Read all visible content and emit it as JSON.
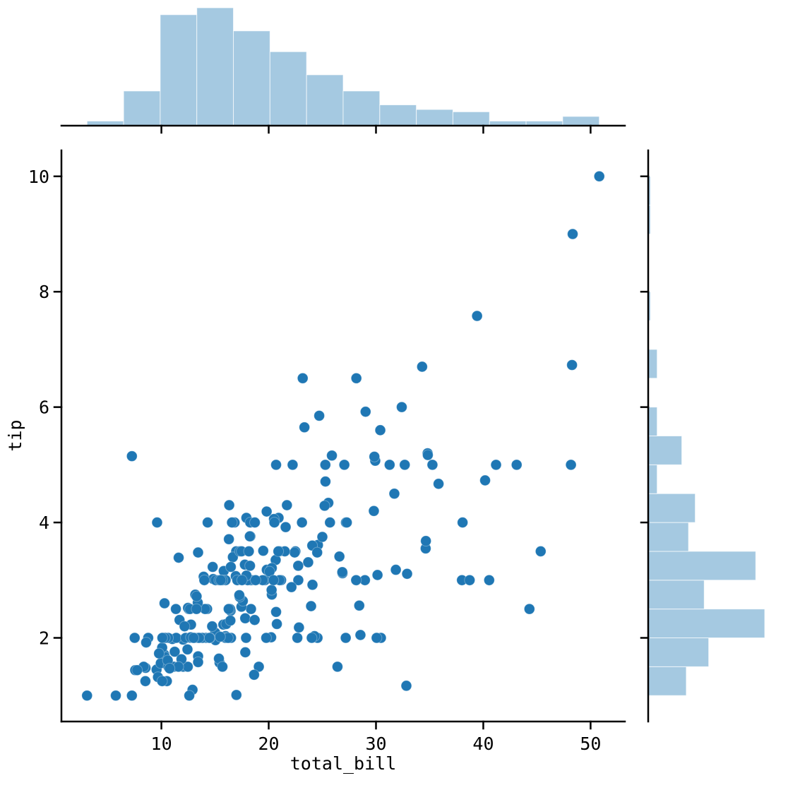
{
  "figure": {
    "xlabel": "total_bill",
    "ylabel": "tip",
    "x_tick_labels": [
      "10",
      "20",
      "30",
      "40",
      "50"
    ],
    "y_tick_labels": [
      "2",
      "4",
      "6",
      "8",
      "10"
    ]
  },
  "colors": {
    "point": "#1f77b4",
    "hist_fill": "#1f77b4",
    "hist_fill_alpha": 0.4,
    "axis": "#000000",
    "background": "#ffffff"
  },
  "chart_data": [
    {
      "id": "joint-scatter",
      "type": "scatter",
      "xlabel": "total_bill",
      "ylabel": "tip",
      "xlim": [
        0.683,
        53.197
      ],
      "ylim": [
        0.55,
        10.45
      ],
      "x_ticks": [
        10,
        20,
        30,
        40,
        50
      ],
      "y_ticks": [
        2,
        4,
        6,
        8,
        10
      ],
      "grid": false,
      "points": [
        [
          16.99,
          1.01
        ],
        [
          10.34,
          1.66
        ],
        [
          21.01,
          3.5
        ],
        [
          23.68,
          3.31
        ],
        [
          24.59,
          3.61
        ],
        [
          25.29,
          4.71
        ],
        [
          8.77,
          2.0
        ],
        [
          26.88,
          3.12
        ],
        [
          15.04,
          1.96
        ],
        [
          14.78,
          3.23
        ],
        [
          10.27,
          1.71
        ],
        [
          35.26,
          5.0
        ],
        [
          15.42,
          1.57
        ],
        [
          18.43,
          3.0
        ],
        [
          14.83,
          3.02
        ],
        [
          21.58,
          3.92
        ],
        [
          10.33,
          1.67
        ],
        [
          16.29,
          3.71
        ],
        [
          16.97,
          3.5
        ],
        [
          20.65,
          3.35
        ],
        [
          17.92,
          4.08
        ],
        [
          20.29,
          2.75
        ],
        [
          15.77,
          2.23
        ],
        [
          39.42,
          7.58
        ],
        [
          19.82,
          3.18
        ],
        [
          17.81,
          2.34
        ],
        [
          13.37,
          2.0
        ],
        [
          12.69,
          2.0
        ],
        [
          21.7,
          4.3
        ],
        [
          19.65,
          3.0
        ],
        [
          9.55,
          1.45
        ],
        [
          18.35,
          2.5
        ],
        [
          15.06,
          3.0
        ],
        [
          20.69,
          2.45
        ],
        [
          17.78,
          3.27
        ],
        [
          24.06,
          3.6
        ],
        [
          16.31,
          2.0
        ],
        [
          16.93,
          3.07
        ],
        [
          18.69,
          2.31
        ],
        [
          31.27,
          5.0
        ],
        [
          16.04,
          2.24
        ],
        [
          17.46,
          2.54
        ],
        [
          13.94,
          3.06
        ],
        [
          9.68,
          1.32
        ],
        [
          30.4,
          5.6
        ],
        [
          18.29,
          3.0
        ],
        [
          22.23,
          5.0
        ],
        [
          32.4,
          6.0
        ],
        [
          28.55,
          2.05
        ],
        [
          18.04,
          3.0
        ],
        [
          12.54,
          2.5
        ],
        [
          10.29,
          2.6
        ],
        [
          34.81,
          5.2
        ],
        [
          9.94,
          1.56
        ],
        [
          25.56,
          4.34
        ],
        [
          19.49,
          3.51
        ],
        [
          38.01,
          3.0
        ],
        [
          26.41,
          1.5
        ],
        [
          11.24,
          1.76
        ],
        [
          48.27,
          6.73
        ],
        [
          20.29,
          3.21
        ],
        [
          13.81,
          2.0
        ],
        [
          11.02,
          1.98
        ],
        [
          18.29,
          3.76
        ],
        [
          17.59,
          2.64
        ],
        [
          20.08,
          3.15
        ],
        [
          16.45,
          2.47
        ],
        [
          3.07,
          1.0
        ],
        [
          20.23,
          2.01
        ],
        [
          15.01,
          2.09
        ],
        [
          12.02,
          1.97
        ],
        [
          17.07,
          3.0
        ],
        [
          26.86,
          3.14
        ],
        [
          25.28,
          5.0
        ],
        [
          14.73,
          2.2
        ],
        [
          10.51,
          1.25
        ],
        [
          17.92,
          3.08
        ],
        [
          27.2,
          4.0
        ],
        [
          22.76,
          3.0
        ],
        [
          17.29,
          2.71
        ],
        [
          19.44,
          3.0
        ],
        [
          16.66,
          3.4
        ],
        [
          10.07,
          1.83
        ],
        [
          32.68,
          5.0
        ],
        [
          15.98,
          2.03
        ],
        [
          34.83,
          5.17
        ],
        [
          13.03,
          2.0
        ],
        [
          18.28,
          4.0
        ],
        [
          24.71,
          5.85
        ],
        [
          21.16,
          3.0
        ],
        [
          28.97,
          3.0
        ],
        [
          22.49,
          3.5
        ],
        [
          5.75,
          1.0
        ],
        [
          16.32,
          4.3
        ],
        [
          22.75,
          3.25
        ],
        [
          40.17,
          4.73
        ],
        [
          27.28,
          4.0
        ],
        [
          12.03,
          1.5
        ],
        [
          21.01,
          3.0
        ],
        [
          12.46,
          1.5
        ],
        [
          11.35,
          2.5
        ],
        [
          15.38,
          3.0
        ],
        [
          44.3,
          2.5
        ],
        [
          22.42,
          3.48
        ],
        [
          20.92,
          4.08
        ],
        [
          15.36,
          1.64
        ],
        [
          20.49,
          4.06
        ],
        [
          25.21,
          4.29
        ],
        [
          18.24,
          3.76
        ],
        [
          14.31,
          4.0
        ],
        [
          14.0,
          3.0
        ],
        [
          7.25,
          1.0
        ],
        [
          38.07,
          4.0
        ],
        [
          23.95,
          2.55
        ],
        [
          25.71,
          4.0
        ],
        [
          17.31,
          3.5
        ],
        [
          29.93,
          5.07
        ],
        [
          10.65,
          1.5
        ],
        [
          12.43,
          1.8
        ],
        [
          24.08,
          2.92
        ],
        [
          11.69,
          2.31
        ],
        [
          13.42,
          1.68
        ],
        [
          14.26,
          2.5
        ],
        [
          15.95,
          2.0
        ],
        [
          12.48,
          2.52
        ],
        [
          29.8,
          4.2
        ],
        [
          8.52,
          1.48
        ],
        [
          14.52,
          2.0
        ],
        [
          11.38,
          2.0
        ],
        [
          22.82,
          2.18
        ],
        [
          19.08,
          1.5
        ],
        [
          20.27,
          2.83
        ],
        [
          11.17,
          1.5
        ],
        [
          12.26,
          2.0
        ],
        [
          18.26,
          3.25
        ],
        [
          8.51,
          1.25
        ],
        [
          10.33,
          2.0
        ],
        [
          14.15,
          2.0
        ],
        [
          16.0,
          2.0
        ],
        [
          13.16,
          2.75
        ],
        [
          17.47,
          3.5
        ],
        [
          34.3,
          6.7
        ],
        [
          41.19,
          5.0
        ],
        [
          27.05,
          5.0
        ],
        [
          16.43,
          2.3
        ],
        [
          8.35,
          1.5
        ],
        [
          18.64,
          1.36
        ],
        [
          11.87,
          1.63
        ],
        [
          9.78,
          1.73
        ],
        [
          7.51,
          2.0
        ],
        [
          14.07,
          2.5
        ],
        [
          13.13,
          2.0
        ],
        [
          17.26,
          2.74
        ],
        [
          24.55,
          2.0
        ],
        [
          19.77,
          2.0
        ],
        [
          29.85,
          5.14
        ],
        [
          48.17,
          5.0
        ],
        [
          25.0,
          3.75
        ],
        [
          13.39,
          2.61
        ],
        [
          16.49,
          2.0
        ],
        [
          21.5,
          3.5
        ],
        [
          12.66,
          2.5
        ],
        [
          16.21,
          2.0
        ],
        [
          13.81,
          2.0
        ],
        [
          17.51,
          3.0
        ],
        [
          24.52,
          3.48
        ],
        [
          20.76,
          2.24
        ],
        [
          31.71,
          4.5
        ],
        [
          10.59,
          1.61
        ],
        [
          10.63,
          2.0
        ],
        [
          50.81,
          10.0
        ],
        [
          15.81,
          3.16
        ],
        [
          7.25,
          5.15
        ],
        [
          31.85,
          3.18
        ],
        [
          16.82,
          4.0
        ],
        [
          32.9,
          3.11
        ],
        [
          17.89,
          2.0
        ],
        [
          14.48,
          2.0
        ],
        [
          9.6,
          4.0
        ],
        [
          34.63,
          3.55
        ],
        [
          34.65,
          3.68
        ],
        [
          23.33,
          5.65
        ],
        [
          45.35,
          3.5
        ],
        [
          23.17,
          6.5
        ],
        [
          40.55,
          3.0
        ],
        [
          20.69,
          5.0
        ],
        [
          20.9,
          3.5
        ],
        [
          30.46,
          2.0
        ],
        [
          18.15,
          3.5
        ],
        [
          23.1,
          4.0
        ],
        [
          15.69,
          1.5
        ],
        [
          19.81,
          4.19
        ],
        [
          28.44,
          2.56
        ],
        [
          15.48,
          2.02
        ],
        [
          16.58,
          4.0
        ],
        [
          7.56,
          1.44
        ],
        [
          10.34,
          2.0
        ],
        [
          43.11,
          5.0
        ],
        [
          13.0,
          2.0
        ],
        [
          13.51,
          2.0
        ],
        [
          18.71,
          4.0
        ],
        [
          12.74,
          2.01
        ],
        [
          13.0,
          2.0
        ],
        [
          16.4,
          2.5
        ],
        [
          20.53,
          4.0
        ],
        [
          16.47,
          3.23
        ],
        [
          26.59,
          3.41
        ],
        [
          38.73,
          3.0
        ],
        [
          24.27,
          2.03
        ],
        [
          12.76,
          2.23
        ],
        [
          30.06,
          2.0
        ],
        [
          25.89,
          5.16
        ],
        [
          48.33,
          9.0
        ],
        [
          13.27,
          2.5
        ],
        [
          28.17,
          6.5
        ],
        [
          12.9,
          1.1
        ],
        [
          28.15,
          3.0
        ],
        [
          11.59,
          1.5
        ],
        [
          7.74,
          1.44
        ],
        [
          30.14,
          3.09
        ],
        [
          12.16,
          2.2
        ],
        [
          13.42,
          3.48
        ],
        [
          8.58,
          1.92
        ],
        [
          15.98,
          3.0
        ],
        [
          13.42,
          1.58
        ],
        [
          16.27,
          2.5
        ],
        [
          10.09,
          2.0
        ],
        [
          20.45,
          3.0
        ],
        [
          13.28,
          2.72
        ],
        [
          22.12,
          2.88
        ],
        [
          24.01,
          2.0
        ],
        [
          15.69,
          3.0
        ],
        [
          11.61,
          3.39
        ],
        [
          10.77,
          1.47
        ],
        [
          15.53,
          3.0
        ],
        [
          10.07,
          1.25
        ],
        [
          12.6,
          1.0
        ],
        [
          32.83,
          1.17
        ],
        [
          35.83,
          4.67
        ],
        [
          29.03,
          5.92
        ],
        [
          27.18,
          2.0
        ],
        [
          22.67,
          2.0
        ],
        [
          17.82,
          1.75
        ],
        [
          18.78,
          3.0
        ]
      ]
    },
    {
      "id": "top-marginal-hist",
      "type": "bar",
      "orientation": "vertical",
      "variable": "total_bill",
      "bin_start": 3.07,
      "bin_width": 3.41,
      "counts": [
        2,
        15,
        48,
        51,
        41,
        32,
        22,
        15,
        9,
        7,
        6,
        2,
        2,
        4
      ]
    },
    {
      "id": "right-marginal-hist",
      "type": "bar",
      "orientation": "horizontal",
      "variable": "tip",
      "bin_start": 1.0,
      "bin_width": 0.5,
      "counts": [
        17,
        27,
        52,
        25,
        48,
        18,
        21,
        4,
        15,
        4,
        0,
        4,
        0,
        1,
        0,
        0,
        1,
        1
      ]
    }
  ]
}
